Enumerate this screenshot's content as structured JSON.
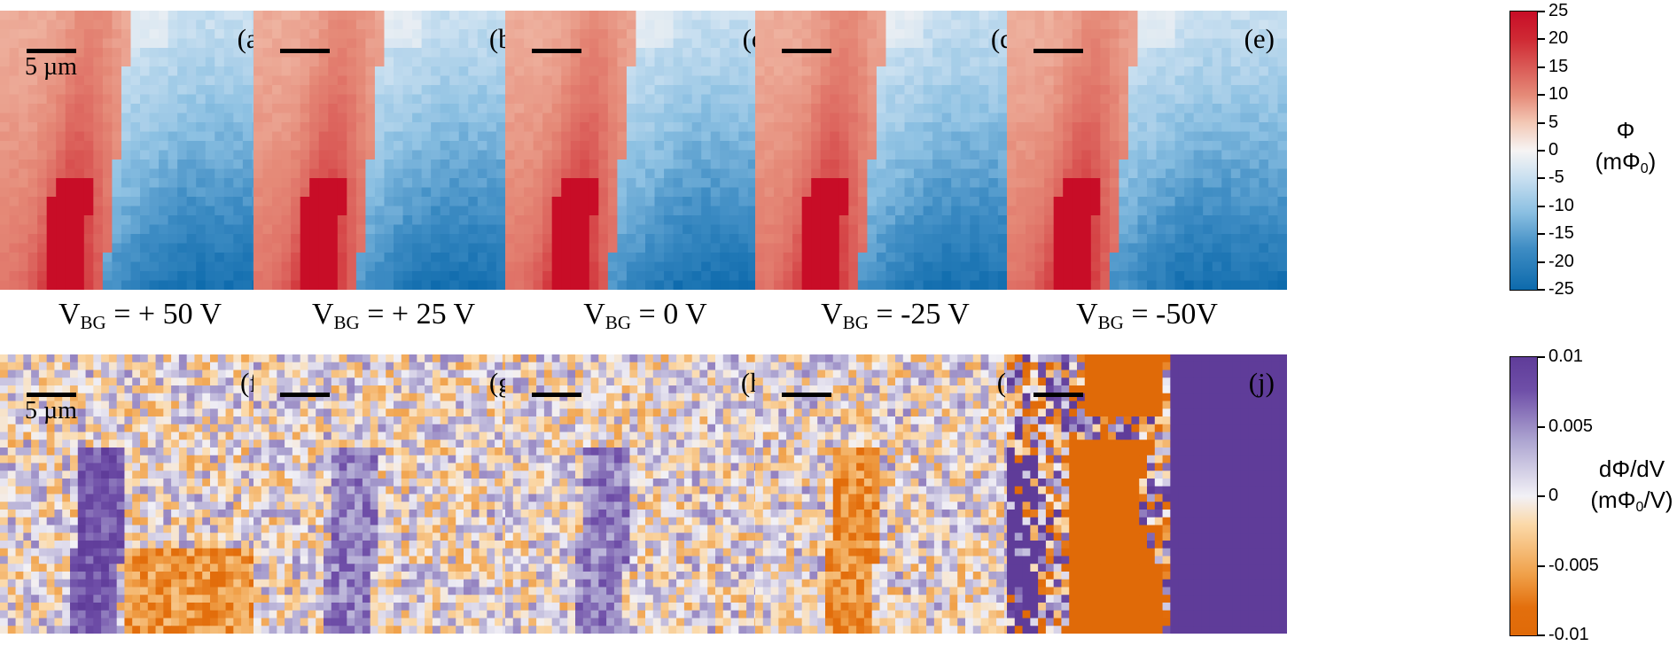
{
  "figure": {
    "panels_top": [
      {
        "label": "(a)",
        "vbg": "+ 50 V",
        "scale_label": "5 µm"
      },
      {
        "label": "(b)",
        "vbg": "+ 25 V",
        "scale_label": ""
      },
      {
        "label": "(c)",
        "vbg": "0 V",
        "scale_label": ""
      },
      {
        "label": "(d)",
        "vbg": "-25 V",
        "scale_label": ""
      },
      {
        "label": "(e)",
        "vbg": "-50V",
        "scale_label": ""
      }
    ],
    "panels_bottom": [
      {
        "label": "(f)",
        "scale_label": "5 µm"
      },
      {
        "label": "(g)",
        "scale_label": ""
      },
      {
        "label": "(h)",
        "scale_label": ""
      },
      {
        "label": "(i)",
        "scale_label": ""
      },
      {
        "label": "(j)",
        "scale_label": ""
      }
    ],
    "vbg_symbol": "V",
    "vbg_subscript": "BG",
    "vbg_equals": " = ",
    "colorbar_top": {
      "title_line1": "Φ",
      "title_line2_main": "(mΦ",
      "title_line2_sub": "0",
      "title_line2_end": ")",
      "ticks": [
        "25",
        "20",
        "15",
        "10",
        "5",
        "0",
        "-5",
        "-10",
        "-15",
        "-20",
        "-25"
      ],
      "range": [
        -25,
        25
      ],
      "colors": {
        "max": "#c80d27",
        "mid": "#f6f4f4",
        "min": "#0d6aac"
      }
    },
    "colorbar_bottom": {
      "title_line1": "dΦ/dV",
      "title_line2_main": "(mΦ",
      "title_line2_sub": "0",
      "title_line2_end": "/V)",
      "ticks": [
        "0.01",
        "0.005",
        "0",
        "-0.005",
        "-0.01"
      ],
      "range": [
        -0.01,
        0.01
      ],
      "colors": {
        "max": "#5f3c99",
        "mid": "#f2f1f6",
        "min": "#e06a08"
      }
    }
  }
}
